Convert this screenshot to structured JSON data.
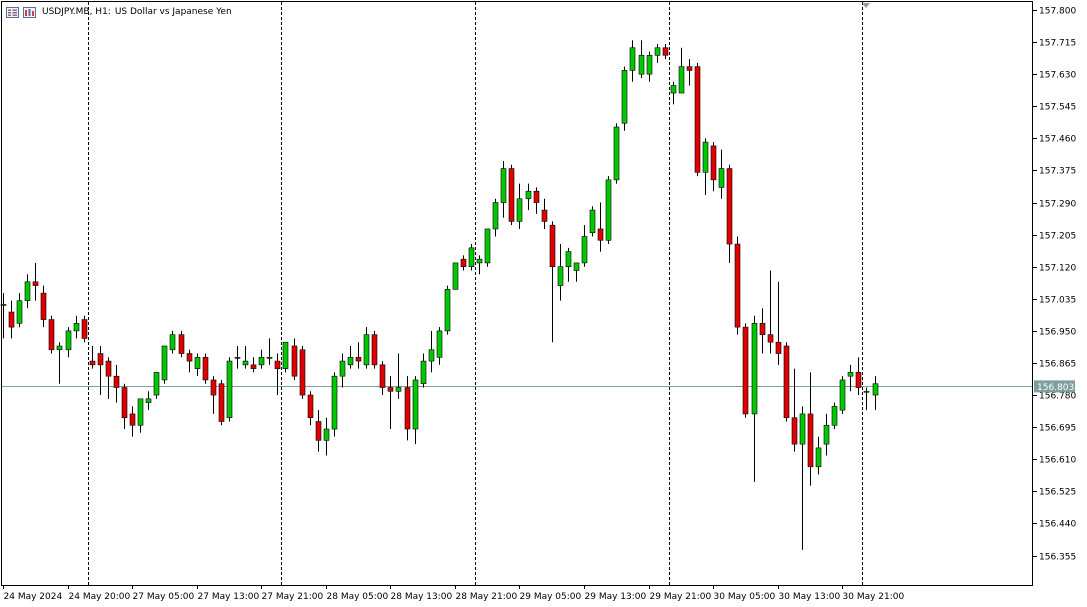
{
  "header": {
    "symbol": "USDJPY.MB, H1:",
    "description": "US Dollar vs Japanese Yen"
  },
  "colors": {
    "bull": "#00c800",
    "bear": "#e00000",
    "price_line": "#7f9f9f",
    "grid": "#000000",
    "background": "#ffffff"
  },
  "chart_data": {
    "type": "candlestick",
    "symbol": "USDJPY.MB",
    "timeframe": "H1",
    "current_price_label": "156.803",
    "current_price": 156.803,
    "ylim": [
      156.29,
      157.82
    ],
    "y_ticks": [
      "157.800",
      "157.715",
      "157.630",
      "157.545",
      "157.460",
      "157.375",
      "157.290",
      "157.205",
      "157.120",
      "157.035",
      "156.950",
      "156.865",
      "156.780",
      "156.695",
      "156.610",
      "156.525",
      "156.440",
      "156.355"
    ],
    "x_tick_labels": [
      {
        "bar": 0,
        "label": "24 May 2024"
      },
      {
        "bar": 8,
        "label": "24 May 20:00"
      },
      {
        "bar": 16,
        "label": "27 May 05:00"
      },
      {
        "bar": 24,
        "label": "27 May 13:00"
      },
      {
        "bar": 32,
        "label": "27 May 21:00"
      },
      {
        "bar": 40,
        "label": "28 May 05:00"
      },
      {
        "bar": 48,
        "label": "28 May 13:00"
      },
      {
        "bar": 56,
        "label": "28 May 21:00"
      },
      {
        "bar": 64,
        "label": "29 May 05:00"
      },
      {
        "bar": 72,
        "label": "29 May 13:00"
      },
      {
        "bar": 80,
        "label": "29 May 21:00"
      },
      {
        "bar": 88,
        "label": "30 May 05:00"
      },
      {
        "bar": 96,
        "label": "30 May 13:00"
      },
      {
        "bar": 104,
        "label": "30 May 21:00"
      }
    ],
    "day_separators_after_bar": [
      10,
      34,
      58,
      82,
      106
    ],
    "candles": [
      {
        "o": 157.02,
        "h": 157.05,
        "l": 156.93,
        "c": 157.02
      },
      {
        "o": 157.0,
        "h": 157.03,
        "l": 156.93,
        "c": 156.96
      },
      {
        "o": 156.97,
        "h": 157.05,
        "l": 156.96,
        "c": 157.03
      },
      {
        "o": 157.03,
        "h": 157.1,
        "l": 157.01,
        "c": 157.08
      },
      {
        "o": 157.08,
        "h": 157.13,
        "l": 157.03,
        "c": 157.07
      },
      {
        "o": 157.05,
        "h": 157.07,
        "l": 156.96,
        "c": 156.98
      },
      {
        "o": 156.98,
        "h": 156.99,
        "l": 156.89,
        "c": 156.9
      },
      {
        "o": 156.9,
        "h": 156.92,
        "l": 156.81,
        "c": 156.91
      },
      {
        "o": 156.9,
        "h": 156.96,
        "l": 156.88,
        "c": 156.95
      },
      {
        "o": 156.95,
        "h": 156.99,
        "l": 156.93,
        "c": 156.97
      },
      {
        "o": 156.98,
        "h": 156.99,
        "l": 156.92,
        "c": 156.93
      },
      {
        "o": 156.87,
        "h": 156.91,
        "l": 156.85,
        "c": 156.86
      },
      {
        "o": 156.89,
        "h": 156.91,
        "l": 156.78,
        "c": 156.86
      },
      {
        "o": 156.87,
        "h": 156.88,
        "l": 156.77,
        "c": 156.83
      },
      {
        "o": 156.83,
        "h": 156.86,
        "l": 156.76,
        "c": 156.8
      },
      {
        "o": 156.8,
        "h": 156.81,
        "l": 156.69,
        "c": 156.72
      },
      {
        "o": 156.73,
        "h": 156.75,
        "l": 156.67,
        "c": 156.7
      },
      {
        "o": 156.7,
        "h": 156.77,
        "l": 156.68,
        "c": 156.77
      },
      {
        "o": 156.76,
        "h": 156.79,
        "l": 156.74,
        "c": 156.77
      },
      {
        "o": 156.78,
        "h": 156.84,
        "l": 156.77,
        "c": 156.84
      },
      {
        "o": 156.82,
        "h": 156.91,
        "l": 156.81,
        "c": 156.91
      },
      {
        "o": 156.9,
        "h": 156.95,
        "l": 156.89,
        "c": 156.94
      },
      {
        "o": 156.94,
        "h": 156.95,
        "l": 156.88,
        "c": 156.89
      },
      {
        "o": 156.89,
        "h": 156.9,
        "l": 156.84,
        "c": 156.87
      },
      {
        "o": 156.85,
        "h": 156.89,
        "l": 156.83,
        "c": 156.88
      },
      {
        "o": 156.88,
        "h": 156.89,
        "l": 156.81,
        "c": 156.82
      },
      {
        "o": 156.82,
        "h": 156.83,
        "l": 156.73,
        "c": 156.78
      },
      {
        "o": 156.81,
        "h": 156.82,
        "l": 156.7,
        "c": 156.71
      },
      {
        "o": 156.72,
        "h": 156.88,
        "l": 156.71,
        "c": 156.87
      },
      {
        "o": 156.88,
        "h": 156.91,
        "l": 156.85,
        "c": 156.88
      },
      {
        "o": 156.86,
        "h": 156.91,
        "l": 156.85,
        "c": 156.87
      },
      {
        "o": 156.86,
        "h": 156.88,
        "l": 156.84,
        "c": 156.85
      },
      {
        "o": 156.86,
        "h": 156.9,
        "l": 156.85,
        "c": 156.88
      },
      {
        "o": 156.88,
        "h": 156.93,
        "l": 156.86,
        "c": 156.88
      },
      {
        "o": 156.87,
        "h": 156.89,
        "l": 156.78,
        "c": 156.85
      },
      {
        "o": 156.85,
        "h": 156.92,
        "l": 156.84,
        "c": 156.92
      },
      {
        "o": 156.91,
        "h": 156.93,
        "l": 156.82,
        "c": 156.83
      },
      {
        "o": 156.9,
        "h": 156.91,
        "l": 156.77,
        "c": 156.78
      },
      {
        "o": 156.78,
        "h": 156.79,
        "l": 156.7,
        "c": 156.72
      },
      {
        "o": 156.71,
        "h": 156.74,
        "l": 156.63,
        "c": 156.66
      },
      {
        "o": 156.66,
        "h": 156.72,
        "l": 156.62,
        "c": 156.69
      },
      {
        "o": 156.69,
        "h": 156.84,
        "l": 156.67,
        "c": 156.83
      },
      {
        "o": 156.83,
        "h": 156.89,
        "l": 156.8,
        "c": 156.87
      },
      {
        "o": 156.86,
        "h": 156.91,
        "l": 156.85,
        "c": 156.88
      },
      {
        "o": 156.88,
        "h": 156.92,
        "l": 156.85,
        "c": 156.87
      },
      {
        "o": 156.86,
        "h": 156.96,
        "l": 156.85,
        "c": 156.94
      },
      {
        "o": 156.94,
        "h": 156.95,
        "l": 156.85,
        "c": 156.86
      },
      {
        "o": 156.86,
        "h": 156.87,
        "l": 156.78,
        "c": 156.8
      },
      {
        "o": 156.8,
        "h": 156.83,
        "l": 156.69,
        "c": 156.79
      },
      {
        "o": 156.79,
        "h": 156.89,
        "l": 156.77,
        "c": 156.8
      },
      {
        "o": 156.8,
        "h": 156.83,
        "l": 156.66,
        "c": 156.69
      },
      {
        "o": 156.69,
        "h": 156.83,
        "l": 156.65,
        "c": 156.82
      },
      {
        "o": 156.81,
        "h": 156.89,
        "l": 156.8,
        "c": 156.87
      },
      {
        "o": 156.87,
        "h": 156.95,
        "l": 156.84,
        "c": 156.9
      },
      {
        "o": 156.88,
        "h": 156.96,
        "l": 156.86,
        "c": 156.95
      },
      {
        "o": 156.95,
        "h": 157.07,
        "l": 156.94,
        "c": 157.06
      },
      {
        "o": 157.06,
        "h": 157.13,
        "l": 157.06,
        "c": 157.13
      },
      {
        "o": 157.14,
        "h": 157.15,
        "l": 157.11,
        "c": 157.12
      },
      {
        "o": 157.12,
        "h": 157.18,
        "l": 157.11,
        "c": 157.17
      },
      {
        "o": 157.13,
        "h": 157.15,
        "l": 157.1,
        "c": 157.14
      },
      {
        "o": 157.13,
        "h": 157.22,
        "l": 157.12,
        "c": 157.22
      },
      {
        "o": 157.22,
        "h": 157.3,
        "l": 157.2,
        "c": 157.29
      },
      {
        "o": 157.29,
        "h": 157.4,
        "l": 157.25,
        "c": 157.38
      },
      {
        "o": 157.38,
        "h": 157.39,
        "l": 157.23,
        "c": 157.24
      },
      {
        "o": 157.24,
        "h": 157.34,
        "l": 157.22,
        "c": 157.3
      },
      {
        "o": 157.3,
        "h": 157.34,
        "l": 157.27,
        "c": 157.32
      },
      {
        "o": 157.32,
        "h": 157.33,
        "l": 157.26,
        "c": 157.29
      },
      {
        "o": 157.27,
        "h": 157.3,
        "l": 157.22,
        "c": 157.24
      },
      {
        "o": 157.23,
        "h": 157.24,
        "l": 156.92,
        "c": 157.12
      },
      {
        "o": 157.07,
        "h": 157.18,
        "l": 157.03,
        "c": 157.12
      },
      {
        "o": 157.12,
        "h": 157.17,
        "l": 157.08,
        "c": 157.16
      },
      {
        "o": 157.11,
        "h": 157.13,
        "l": 157.08,
        "c": 157.13
      },
      {
        "o": 157.13,
        "h": 157.23,
        "l": 157.12,
        "c": 157.2
      },
      {
        "o": 157.21,
        "h": 157.28,
        "l": 157.2,
        "c": 157.27
      },
      {
        "o": 157.22,
        "h": 157.29,
        "l": 157.16,
        "c": 157.19
      },
      {
        "o": 157.19,
        "h": 157.36,
        "l": 157.18,
        "c": 157.35
      },
      {
        "o": 157.35,
        "h": 157.5,
        "l": 157.34,
        "c": 157.49
      },
      {
        "o": 157.5,
        "h": 157.65,
        "l": 157.48,
        "c": 157.64
      },
      {
        "o": 157.64,
        "h": 157.72,
        "l": 157.61,
        "c": 157.7
      },
      {
        "o": 157.63,
        "h": 157.72,
        "l": 157.62,
        "c": 157.68
      },
      {
        "o": 157.63,
        "h": 157.69,
        "l": 157.61,
        "c": 157.68
      },
      {
        "o": 157.68,
        "h": 157.71,
        "l": 157.66,
        "c": 157.7
      },
      {
        "o": 157.7,
        "h": 157.71,
        "l": 157.67,
        "c": 157.68
      },
      {
        "o": 157.58,
        "h": 157.61,
        "l": 157.55,
        "c": 157.6
      },
      {
        "o": 157.58,
        "h": 157.7,
        "l": 157.58,
        "c": 157.65
      },
      {
        "o": 157.65,
        "h": 157.67,
        "l": 157.6,
        "c": 157.64
      },
      {
        "o": 157.65,
        "h": 157.66,
        "l": 157.36,
        "c": 157.37
      },
      {
        "o": 157.37,
        "h": 157.46,
        "l": 157.31,
        "c": 157.45
      },
      {
        "o": 157.44,
        "h": 157.45,
        "l": 157.32,
        "c": 157.35
      },
      {
        "o": 157.33,
        "h": 157.43,
        "l": 157.3,
        "c": 157.38
      },
      {
        "o": 157.38,
        "h": 157.39,
        "l": 157.13,
        "c": 157.18
      },
      {
        "o": 157.18,
        "h": 157.2,
        "l": 156.94,
        "c": 156.96
      },
      {
        "o": 156.96,
        "h": 156.97,
        "l": 156.72,
        "c": 156.73
      },
      {
        "o": 156.73,
        "h": 156.99,
        "l": 156.55,
        "c": 156.97
      },
      {
        "o": 156.97,
        "h": 157.01,
        "l": 156.89,
        "c": 156.94
      },
      {
        "o": 156.94,
        "h": 157.11,
        "l": 156.89,
        "c": 156.92
      },
      {
        "o": 156.92,
        "h": 157.08,
        "l": 156.86,
        "c": 156.89
      },
      {
        "o": 156.91,
        "h": 156.92,
        "l": 156.71,
        "c": 156.72
      },
      {
        "o": 156.72,
        "h": 156.85,
        "l": 156.63,
        "c": 156.65
      },
      {
        "o": 156.65,
        "h": 156.75,
        "l": 156.37,
        "c": 156.73
      },
      {
        "o": 156.73,
        "h": 156.84,
        "l": 156.54,
        "c": 156.59
      },
      {
        "o": 156.59,
        "h": 156.67,
        "l": 156.57,
        "c": 156.64
      },
      {
        "o": 156.65,
        "h": 156.73,
        "l": 156.62,
        "c": 156.7
      },
      {
        "o": 156.7,
        "h": 156.76,
        "l": 156.69,
        "c": 156.75
      },
      {
        "o": 156.74,
        "h": 156.83,
        "l": 156.73,
        "c": 156.82
      },
      {
        "o": 156.83,
        "h": 156.86,
        "l": 156.79,
        "c": 156.84
      },
      {
        "o": 156.84,
        "h": 156.88,
        "l": 156.78,
        "c": 156.8
      },
      {
        "o": 156.79,
        "h": 156.8,
        "l": 156.74,
        "c": 156.79
      },
      {
        "o": 156.78,
        "h": 156.83,
        "l": 156.74,
        "c": 156.81
      }
    ]
  }
}
